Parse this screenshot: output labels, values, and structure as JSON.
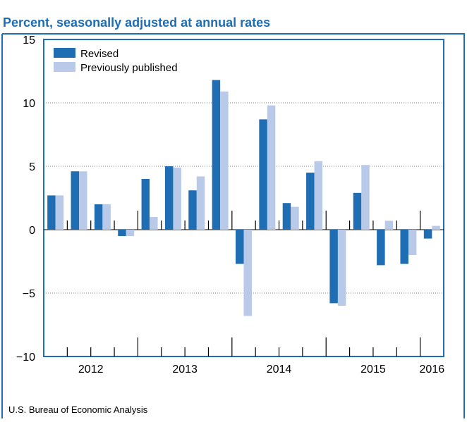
{
  "chart_data": {
    "type": "bar",
    "title": "Percent, seasonally adjusted at annual rates",
    "source": "U.S. Bureau of Economic Analysis",
    "xlabel": "",
    "ylabel": "",
    "ylim": [
      -10,
      15
    ],
    "yticks": [
      15,
      10,
      5,
      0,
      -5,
      -10
    ],
    "ytick_labels": [
      "15",
      "10",
      "5",
      "0",
      "−5",
      "−10"
    ],
    "grid": true,
    "legend_position": "top-left",
    "categories": [
      "2012Q1",
      "2012Q2",
      "2012Q3",
      "2012Q4",
      "2013Q1",
      "2013Q2",
      "2013Q3",
      "2013Q4",
      "2014Q1",
      "2014Q2",
      "2014Q3",
      "2014Q4",
      "2015Q1",
      "2015Q2",
      "2015Q3",
      "2015Q4",
      "2016Q1"
    ],
    "year_labels": [
      {
        "label": "2012",
        "start": 0,
        "count": 4
      },
      {
        "label": "2013",
        "start": 4,
        "count": 4
      },
      {
        "label": "2014",
        "start": 8,
        "count": 4
      },
      {
        "label": "2015",
        "start": 12,
        "count": 4
      },
      {
        "label": "2016",
        "start": 16,
        "count": 1
      }
    ],
    "series": [
      {
        "name": "Revised",
        "color": "#1f6db3",
        "values": [
          2.7,
          4.6,
          2.0,
          -0.5,
          4.0,
          5.0,
          3.1,
          11.8,
          -2.7,
          8.7,
          2.1,
          4.5,
          -5.8,
          2.9,
          -2.8,
          -2.7,
          -0.7
        ]
      },
      {
        "name": "Previously published",
        "color": "#b9c9e8",
        "values": [
          2.7,
          4.6,
          2.0,
          -0.5,
          1.0,
          4.9,
          4.2,
          10.9,
          -6.8,
          9.8,
          1.8,
          5.4,
          -6.0,
          5.1,
          0.7,
          -2.0,
          0.3
        ]
      }
    ],
    "colors": {
      "title": "#1f6db3",
      "frame": "#1f6db3",
      "text": "#000000"
    }
  }
}
